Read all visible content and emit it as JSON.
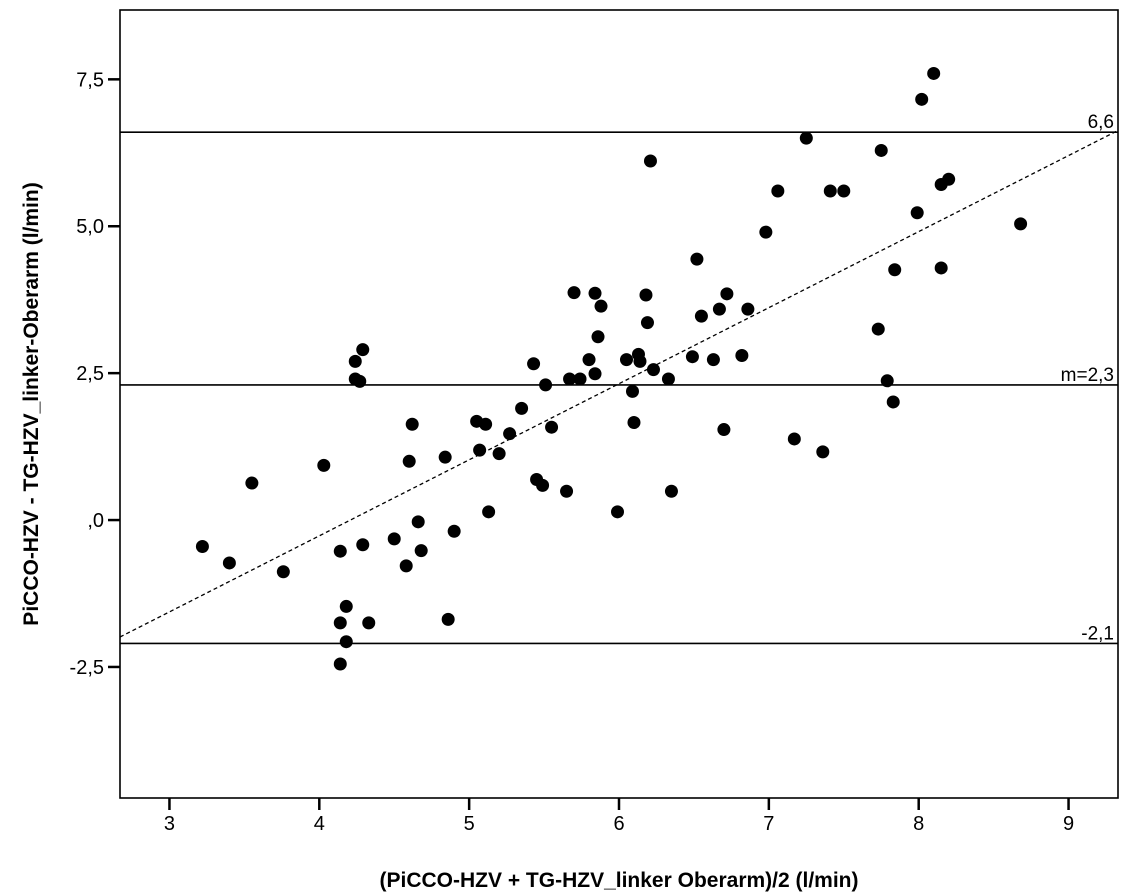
{
  "colors": {
    "background": "#ffffff",
    "ink": "#000000"
  },
  "chart_data": {
    "type": "scatter",
    "title": "",
    "xlabel": "(PiCCO-HZV + TG-HZV_linker Oberarm)/2 (l/min)",
    "ylabel": "PiCCO-HZV - TG-HZV_linker-Oberarm (l/min)",
    "xlim": [
      2.67,
      9.33
    ],
    "ylim": [
      -4.73,
      8.68
    ],
    "grid": false,
    "legend": "none",
    "x_ticks": [
      {
        "value": 3,
        "label": "3"
      },
      {
        "value": 4,
        "label": "4"
      },
      {
        "value": 5,
        "label": "5"
      },
      {
        "value": 6,
        "label": "6"
      },
      {
        "value": 7,
        "label": "7"
      },
      {
        "value": 8,
        "label": "8"
      },
      {
        "value": 9,
        "label": "9"
      }
    ],
    "y_ticks": [
      {
        "value": -2.5,
        "label": "-2,5"
      },
      {
        "value": 0,
        "label": ",0"
      },
      {
        "value": 2.5,
        "label": "2,5"
      },
      {
        "value": 5,
        "label": "5,0"
      },
      {
        "value": 7.5,
        "label": "7,5"
      }
    ],
    "reference_lines": [
      {
        "y": 6.6,
        "label": "6,6"
      },
      {
        "y": 2.3,
        "label": "m=2,3"
      },
      {
        "y": -2.1,
        "label": "-2,1"
      }
    ],
    "trend_line": {
      "style": "dashed",
      "x": [
        2.67,
        9.33
      ],
      "y": [
        -1.99,
        6.63
      ]
    },
    "points": [
      [
        3.22,
        -0.45
      ],
      [
        3.4,
        -0.73
      ],
      [
        3.55,
        0.63
      ],
      [
        3.76,
        -0.88
      ],
      [
        4.03,
        0.93
      ],
      [
        4.14,
        -0.53
      ],
      [
        4.14,
        -1.75
      ],
      [
        4.14,
        -2.45
      ],
      [
        4.18,
        -1.47
      ],
      [
        4.18,
        -2.07
      ],
      [
        4.24,
        2.7
      ],
      [
        4.24,
        2.4
      ],
      [
        4.27,
        2.36
      ],
      [
        4.29,
        2.9
      ],
      [
        4.29,
        -0.42
      ],
      [
        4.33,
        -1.75
      ],
      [
        4.5,
        -0.32
      ],
      [
        4.58,
        -0.78
      ],
      [
        4.6,
        1.0
      ],
      [
        4.62,
        1.63
      ],
      [
        4.66,
        -0.03
      ],
      [
        4.68,
        -0.52
      ],
      [
        4.84,
        1.07
      ],
      [
        4.86,
        -1.69
      ],
      [
        4.9,
        -0.19
      ],
      [
        5.05,
        1.68
      ],
      [
        5.07,
        1.19
      ],
      [
        5.11,
        1.63
      ],
      [
        5.13,
        0.14
      ],
      [
        5.2,
        1.13
      ],
      [
        5.27,
        1.47
      ],
      [
        5.35,
        1.9
      ],
      [
        5.43,
        2.66
      ],
      [
        5.45,
        0.69
      ],
      [
        5.49,
        0.59
      ],
      [
        5.51,
        2.3
      ],
      [
        5.55,
        1.58
      ],
      [
        5.65,
        0.49
      ],
      [
        5.67,
        2.4
      ],
      [
        5.7,
        3.87
      ],
      [
        5.74,
        2.4
      ],
      [
        5.8,
        2.73
      ],
      [
        5.84,
        3.86
      ],
      [
        5.84,
        2.49
      ],
      [
        5.86,
        3.12
      ],
      [
        5.88,
        3.64
      ],
      [
        5.99,
        0.14
      ],
      [
        6.05,
        2.73
      ],
      [
        6.09,
        2.19
      ],
      [
        6.1,
        1.66
      ],
      [
        6.13,
        2.82
      ],
      [
        6.14,
        2.7
      ],
      [
        6.18,
        3.83
      ],
      [
        6.19,
        3.36
      ],
      [
        6.21,
        6.11
      ],
      [
        6.23,
        2.56
      ],
      [
        6.33,
        2.4
      ],
      [
        6.35,
        0.49
      ],
      [
        6.49,
        2.78
      ],
      [
        6.52,
        4.44
      ],
      [
        6.55,
        3.47
      ],
      [
        6.63,
        2.73
      ],
      [
        6.67,
        3.59
      ],
      [
        6.7,
        1.54
      ],
      [
        6.72,
        3.85
      ],
      [
        6.82,
        2.8
      ],
      [
        6.86,
        3.59
      ],
      [
        6.98,
        4.9
      ],
      [
        7.06,
        5.6
      ],
      [
        7.17,
        1.38
      ],
      [
        7.25,
        6.5
      ],
      [
        7.36,
        1.16
      ],
      [
        7.41,
        5.6
      ],
      [
        7.5,
        5.6
      ],
      [
        7.73,
        3.25
      ],
      [
        7.75,
        6.29
      ],
      [
        7.79,
        2.37
      ],
      [
        7.83,
        2.01
      ],
      [
        7.84,
        4.26
      ],
      [
        7.99,
        5.23
      ],
      [
        8.02,
        7.16
      ],
      [
        8.1,
        7.6
      ],
      [
        8.15,
        5.71
      ],
      [
        8.15,
        4.29
      ],
      [
        8.2,
        5.8
      ],
      [
        8.68,
        5.04
      ]
    ]
  }
}
